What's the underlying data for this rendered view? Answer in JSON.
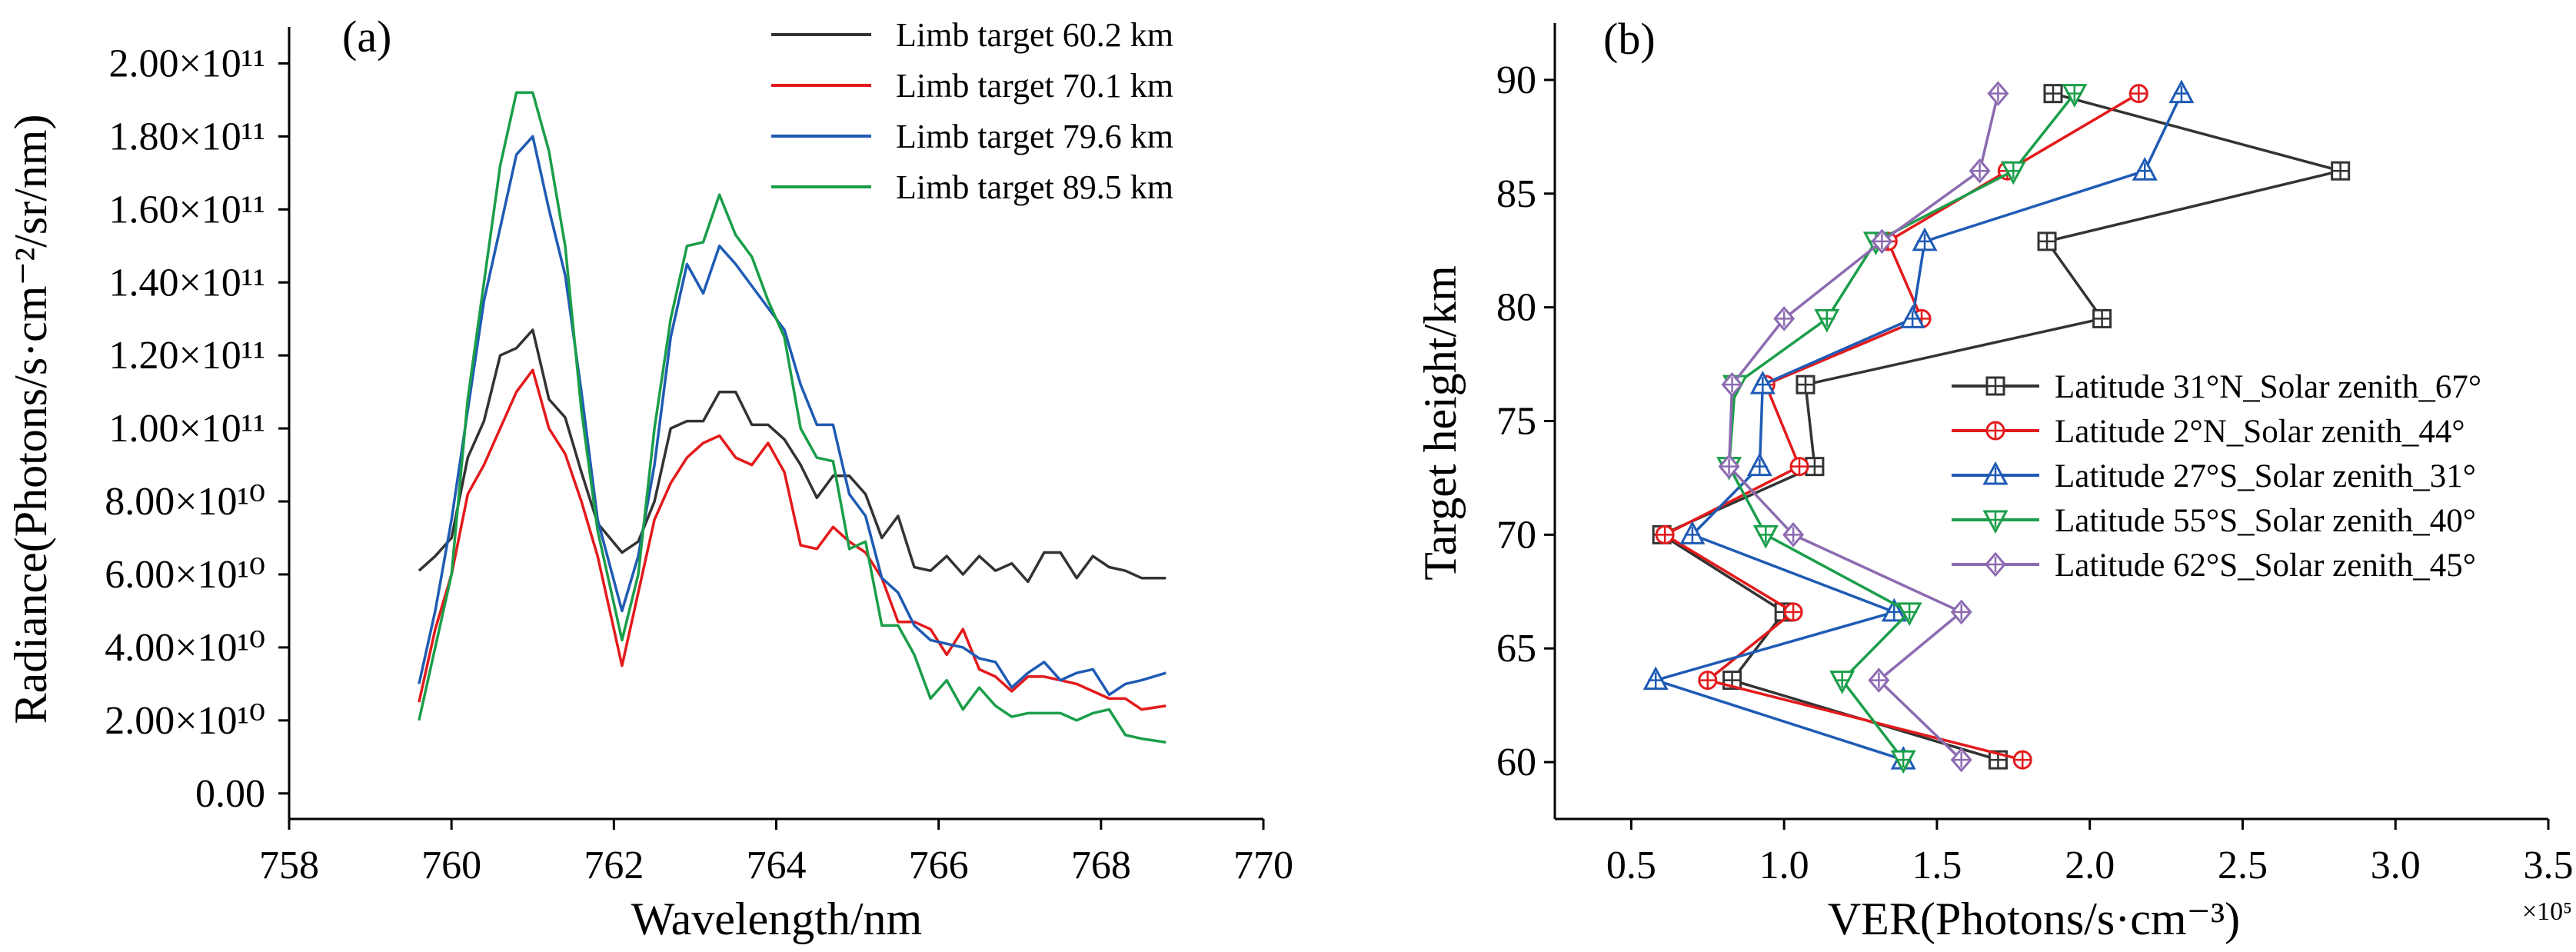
{
  "chart_data": [
    {
      "type": "line",
      "panel_label": "(a)",
      "xlabel": "Wavelength/nm",
      "ylabel": "Radiance(Photons/s·cm⁻²/sr/nm)",
      "xlim": [
        758,
        770
      ],
      "ylim": [
        -7000000000.0,
        210000000000.0
      ],
      "xticks": [
        758,
        760,
        762,
        764,
        766,
        768,
        770
      ],
      "yticks": [
        0,
        20000000000.0,
        40000000000.0,
        60000000000.0,
        80000000000.0,
        100000000000.0,
        120000000000.0,
        140000000000.0,
        160000000000.0,
        180000000000.0,
        200000000000.0
      ],
      "ytick_labels": [
        "0.00",
        "2.00×10¹⁰",
        "4.00×10¹⁰",
        "6.00×10¹⁰",
        "8.00×10¹⁰",
        "1.00×10¹¹",
        "1.20×10¹¹",
        "1.40×10¹¹",
        "1.60×10¹¹",
        "1.80×10¹¹",
        "2.00×10¹¹"
      ],
      "legend_position": "top-right",
      "grid": false,
      "x": [
        759.6,
        759.8,
        760.0,
        760.2,
        760.4,
        760.6,
        760.8,
        761.0,
        761.2,
        761.4,
        761.6,
        761.8,
        762.1,
        762.3,
        762.5,
        762.7,
        762.9,
        763.1,
        763.3,
        763.5,
        763.7,
        763.9,
        764.1,
        764.3,
        764.5,
        764.7,
        764.9,
        765.1,
        765.3,
        765.5,
        765.7,
        765.9,
        766.1,
        766.3,
        766.5,
        766.7,
        766.9,
        767.1,
        767.3,
        767.5,
        767.7,
        767.9,
        768.1,
        768.3,
        768.5,
        768.8
      ],
      "series": [
        {
          "name": "Limb target 60.2 km",
          "color": "#333333",
          "values": [
            61000000000.0,
            65000000000.0,
            70000000000.0,
            92000000000.0,
            102000000000.0,
            120000000000.0,
            122000000000.0,
            127000000000.0,
            108000000000.0,
            103000000000.0,
            88000000000.0,
            74000000000.0,
            66000000000.0,
            69000000000.0,
            80000000000.0,
            100000000000.0,
            102000000000.0,
            102000000000.0,
            110000000000.0,
            110000000000.0,
            101000000000.0,
            101000000000.0,
            97000000000.0,
            90000000000.0,
            81000000000.0,
            87000000000.0,
            87000000000.0,
            82000000000.0,
            70000000000.0,
            76000000000.0,
            62000000000.0,
            61000000000.0,
            65000000000.0,
            60000000000.0,
            65000000000.0,
            61000000000.0,
            63000000000.0,
            58000000000.0,
            66000000000.0,
            66000000000.0,
            59000000000.0,
            65000000000.0,
            62000000000.0,
            61000000000.0,
            59000000000.0,
            59000000000.0
          ]
        },
        {
          "name": "Limb target 70.1 km",
          "color": "#e31a1c",
          "values": [
            25000000000.0,
            45000000000.0,
            60000000000.0,
            82000000000.0,
            90000000000.0,
            100000000000.0,
            110000000000.0,
            116000000000.0,
            100000000000.0,
            93000000000.0,
            80000000000.0,
            65000000000.0,
            35000000000.0,
            55000000000.0,
            75000000000.0,
            85000000000.0,
            92000000000.0,
            96000000000.0,
            98000000000.0,
            92000000000.0,
            90000000000.0,
            96000000000.0,
            88000000000.0,
            68000000000.0,
            67000000000.0,
            73000000000.0,
            69000000000.0,
            66000000000.0,
            59000000000.0,
            47000000000.0,
            47000000000.0,
            45000000000.0,
            38000000000.0,
            45000000000.0,
            34000000000.0,
            32000000000.0,
            28000000000.0,
            32000000000.0,
            32000000000.0,
            31000000000.0,
            30000000000.0,
            28000000000.0,
            26000000000.0,
            26000000000.0,
            23000000000.0,
            24000000000.0
          ]
        },
        {
          "name": "Limb target 79.6 km",
          "color": "#1f5bb4",
          "values": [
            30000000000.0,
            50000000000.0,
            75000000000.0,
            105000000000.0,
            135000000000.0,
            155000000000.0,
            175000000000.0,
            180000000000.0,
            160000000000.0,
            142000000000.0,
            110000000000.0,
            75000000000.0,
            50000000000.0,
            65000000000.0,
            90000000000.0,
            125000000000.0,
            145000000000.0,
            137000000000.0,
            150000000000.0,
            145000000000.0,
            139000000000.0,
            133000000000.0,
            127000000000.0,
            112000000000.0,
            101000000000.0,
            101000000000.0,
            82000000000.0,
            76000000000.0,
            59000000000.0,
            55000000000.0,
            46000000000.0,
            42000000000.0,
            41000000000.0,
            40000000000.0,
            37000000000.0,
            36000000000.0,
            29000000000.0,
            33000000000.0,
            36000000000.0,
            31000000000.0,
            33000000000.0,
            34000000000.0,
            27000000000.0,
            30000000000.0,
            31000000000.0,
            33000000000.0
          ]
        },
        {
          "name": "Limb target 89.5 km",
          "color": "#1a9e49",
          "values": [
            20000000000.0,
            40000000000.0,
            60000000000.0,
            108000000000.0,
            140000000000.0,
            172000000000.0,
            192000000000.0,
            192000000000.0,
            176000000000.0,
            150000000000.0,
            105000000000.0,
            72000000000.0,
            42000000000.0,
            60000000000.0,
            100000000000.0,
            130000000000.0,
            150000000000.0,
            151000000000.0,
            164000000000.0,
            153000000000.0,
            147000000000.0,
            135000000000.0,
            125000000000.0,
            100000000000.0,
            92000000000.0,
            91000000000.0,
            67000000000.0,
            69000000000.0,
            46000000000.0,
            46000000000.0,
            38000000000.0,
            26000000000.0,
            31000000000.0,
            23000000000.0,
            29000000000.0,
            24000000000.0,
            21000000000.0,
            22000000000.0,
            22000000000.0,
            22000000000.0,
            20000000000.0,
            22000000000.0,
            23000000000.0,
            16000000000.0,
            15000000000.0,
            14000000000.0
          ]
        }
      ]
    },
    {
      "type": "line",
      "panel_label": "(b)",
      "xlabel": "VER(Photons/s·cm⁻³)",
      "x_multiplier": "×10⁵",
      "ylabel": "Target height/km",
      "xlim": [
        0.25,
        3.5
      ],
      "ylim": [
        57.5,
        92.5
      ],
      "xticks": [
        0.5,
        1.0,
        1.5,
        2.0,
        2.5,
        3.0,
        3.5
      ],
      "xtick_labels": [
        "0.5",
        "1.0",
        "1.5",
        "2.0",
        "2.5",
        "3.0",
        "3.5"
      ],
      "yticks": [
        60,
        65,
        70,
        75,
        80,
        85,
        90
      ],
      "legend_position": "middle-right",
      "grid": false,
      "y": [
        60.1,
        63.6,
        66.6,
        70.0,
        73.0,
        76.6,
        79.5,
        82.9,
        86.0,
        89.4
      ],
      "series": [
        {
          "name": "Latitude 31°N_Solar zenith_67°",
          "color": "#333333",
          "marker": "square-plus",
          "x": [
            1.7,
            0.83,
            1.0,
            0.6,
            1.1,
            1.07,
            2.04,
            1.86,
            2.82,
            1.88
          ]
        },
        {
          "name": "Latitude 2°N_Solar zenith_44°",
          "color": "#e31a1c",
          "marker": "circle-plus",
          "x": [
            1.78,
            0.75,
            1.03,
            0.61,
            1.05,
            0.94,
            1.45,
            1.34,
            1.73,
            2.16
          ]
        },
        {
          "name": "Latitude 27°S_Solar zenith_31°",
          "color": "#1f5bb4",
          "marker": "triangle-up-plus",
          "x": [
            1.39,
            0.58,
            1.36,
            0.7,
            0.92,
            0.93,
            1.42,
            1.46,
            2.18,
            2.3
          ]
        },
        {
          "name": "Latitude 55°S_Solar zenith_40°",
          "color": "#1a9e49",
          "marker": "triangle-down-plus",
          "x": [
            1.39,
            1.19,
            1.41,
            0.94,
            0.82,
            0.84,
            1.14,
            1.3,
            1.75,
            1.95
          ]
        },
        {
          "name": "Latitude 62°S_Solar zenith_45°",
          "color": "#8c6bb1",
          "marker": "diamond-plus",
          "x": [
            1.58,
            1.31,
            1.58,
            1.03,
            0.82,
            0.83,
            1.0,
            1.32,
            1.64,
            1.7
          ]
        }
      ]
    }
  ]
}
